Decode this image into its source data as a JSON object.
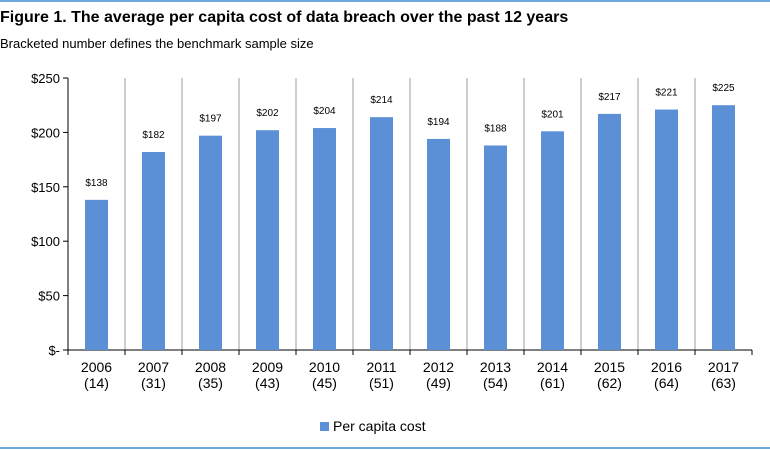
{
  "header": {
    "title": "Figure 1. The average per capita cost of data breach over the past 12 years",
    "subtitle": "Bracketed number defines the benchmark sample size"
  },
  "colors": {
    "bar": "#5b8fd6",
    "rule": "#6fa8dc",
    "axis": "#000000",
    "divider": "#9e9e9e"
  },
  "chart_data": {
    "type": "bar",
    "title": "Figure 1. The average per capita cost of data breach over the past 12 years",
    "subtitle": "Bracketed number defines the benchmark sample size",
    "categories": [
      "2006",
      "2007",
      "2008",
      "2009",
      "2010",
      "2011",
      "2012",
      "2013",
      "2014",
      "2015",
      "2016",
      "2017"
    ],
    "sample_sizes": [
      "(14)",
      "(31)",
      "(35)",
      "(43)",
      "(45)",
      "(51)",
      "(49)",
      "(54)",
      "(61)",
      "(62)",
      "(64)",
      "(63)"
    ],
    "series": [
      {
        "name": "Per capita cost",
        "values": [
          138,
          182,
          197,
          202,
          204,
          214,
          194,
          188,
          201,
          217,
          221,
          225
        ]
      }
    ],
    "data_labels": [
      "$138",
      "$182",
      "$197",
      "$202",
      "$204",
      "$214",
      "$194",
      "$188",
      "$201",
      "$217",
      "$221",
      "$225"
    ],
    "ylim": [
      0,
      250
    ],
    "yticks": [
      0,
      50,
      100,
      150,
      200,
      250
    ],
    "ytick_labels": [
      "$-",
      "$50",
      "$100",
      "$150",
      "$200",
      "$250"
    ],
    "legend_position": "bottom",
    "grid": false
  }
}
